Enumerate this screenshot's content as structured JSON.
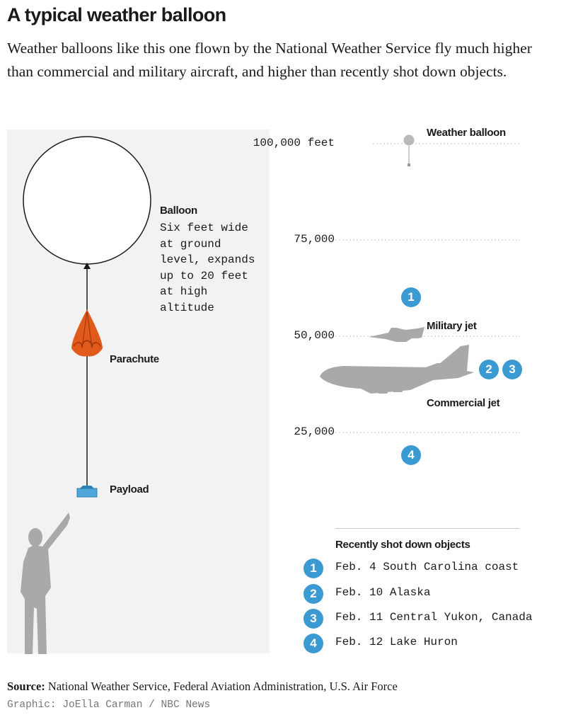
{
  "header": {
    "title": "A typical weather balloon",
    "subtitle": "Weather balloons like this one flown by the National Weather Service fly much higher than commercial and military aircraft, and higher than recently shot down objects."
  },
  "diagram": {
    "balloon": {
      "label": "Balloon",
      "description": [
        "Six feet wide",
        "at ground",
        "level, expands",
        "up to 20 feet",
        "at high",
        "altitude"
      ]
    },
    "parachute_label": "Parachute",
    "payload_label": "Payload"
  },
  "altitude_scale": {
    "ticks": [
      "100,000 feet",
      "75,000",
      "50,000",
      "25,000"
    ],
    "objects": {
      "weather_balloon": "Weather balloon",
      "military_jet": "Military jet",
      "commercial_jet": "Commercial jet"
    },
    "markers": [
      "1",
      "2",
      "3",
      "4"
    ]
  },
  "legend": {
    "title": "Recently shot down objects",
    "items": [
      {
        "number": "1",
        "text": "Feb. 4 South Carolina coast"
      },
      {
        "number": "2",
        "text": "Feb. 10 Alaska"
      },
      {
        "number": "3",
        "text": "Feb. 11 Central Yukon, Canada"
      },
      {
        "number": "4",
        "text": "Feb. 12 Lake Huron"
      }
    ]
  },
  "footer": {
    "source_label": "Source:",
    "source_text": "National Weather Service, Federal Aviation Administration, U.S. Air Force",
    "credit": "Graphic: JoElla Carman / NBC News"
  },
  "colors": {
    "marker_blue": "#3a9ad1",
    "parachute_orange": "#e05a1c",
    "payload_blue": "#4fa6d8",
    "silhouette_gray": "#a9a9a9",
    "panel_gray": "#f2f2f2"
  }
}
